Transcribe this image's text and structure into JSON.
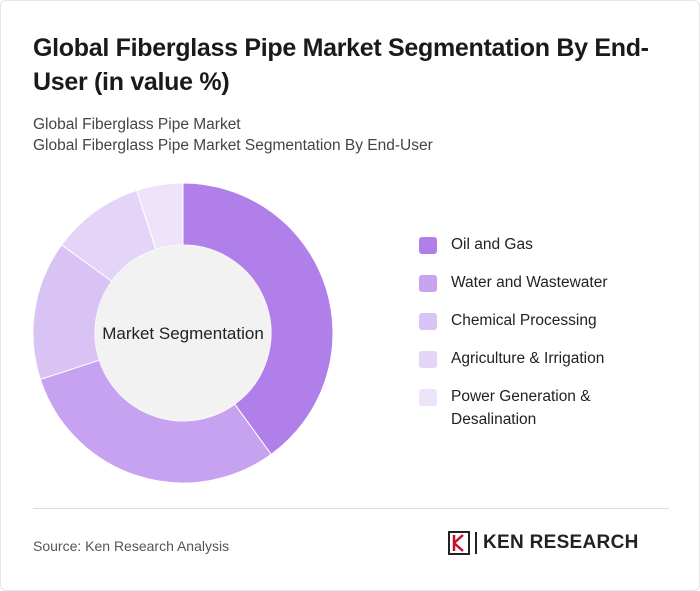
{
  "header": {
    "title": "Global Fiberglass Pipe Market Segmentation By End-User (in value %)",
    "subtitle_line1": "Global Fiberglass Pipe Market",
    "subtitle_line2": "Global Fiberglass Pipe Market Segmentation By End-User"
  },
  "chart_data": {
    "type": "pie",
    "variant": "donut",
    "center_label": "Market Segmentation",
    "categories": [
      "Oil and Gas",
      "Water and Wastewater",
      "Chemical Processing",
      "Agriculture & Irrigation",
      "Power Generation & Desalination"
    ],
    "values": [
      40,
      30,
      15,
      10,
      5
    ],
    "colors": [
      "#b07fea",
      "#c7a2f0",
      "#d9c2f4",
      "#e4d4f7",
      "#eee4fa"
    ],
    "legend_position": "right"
  },
  "footer": {
    "source": "Source: Ken Research Analysis",
    "logo_text": "KEN RESEARCH",
    "logo_mark": "K"
  }
}
